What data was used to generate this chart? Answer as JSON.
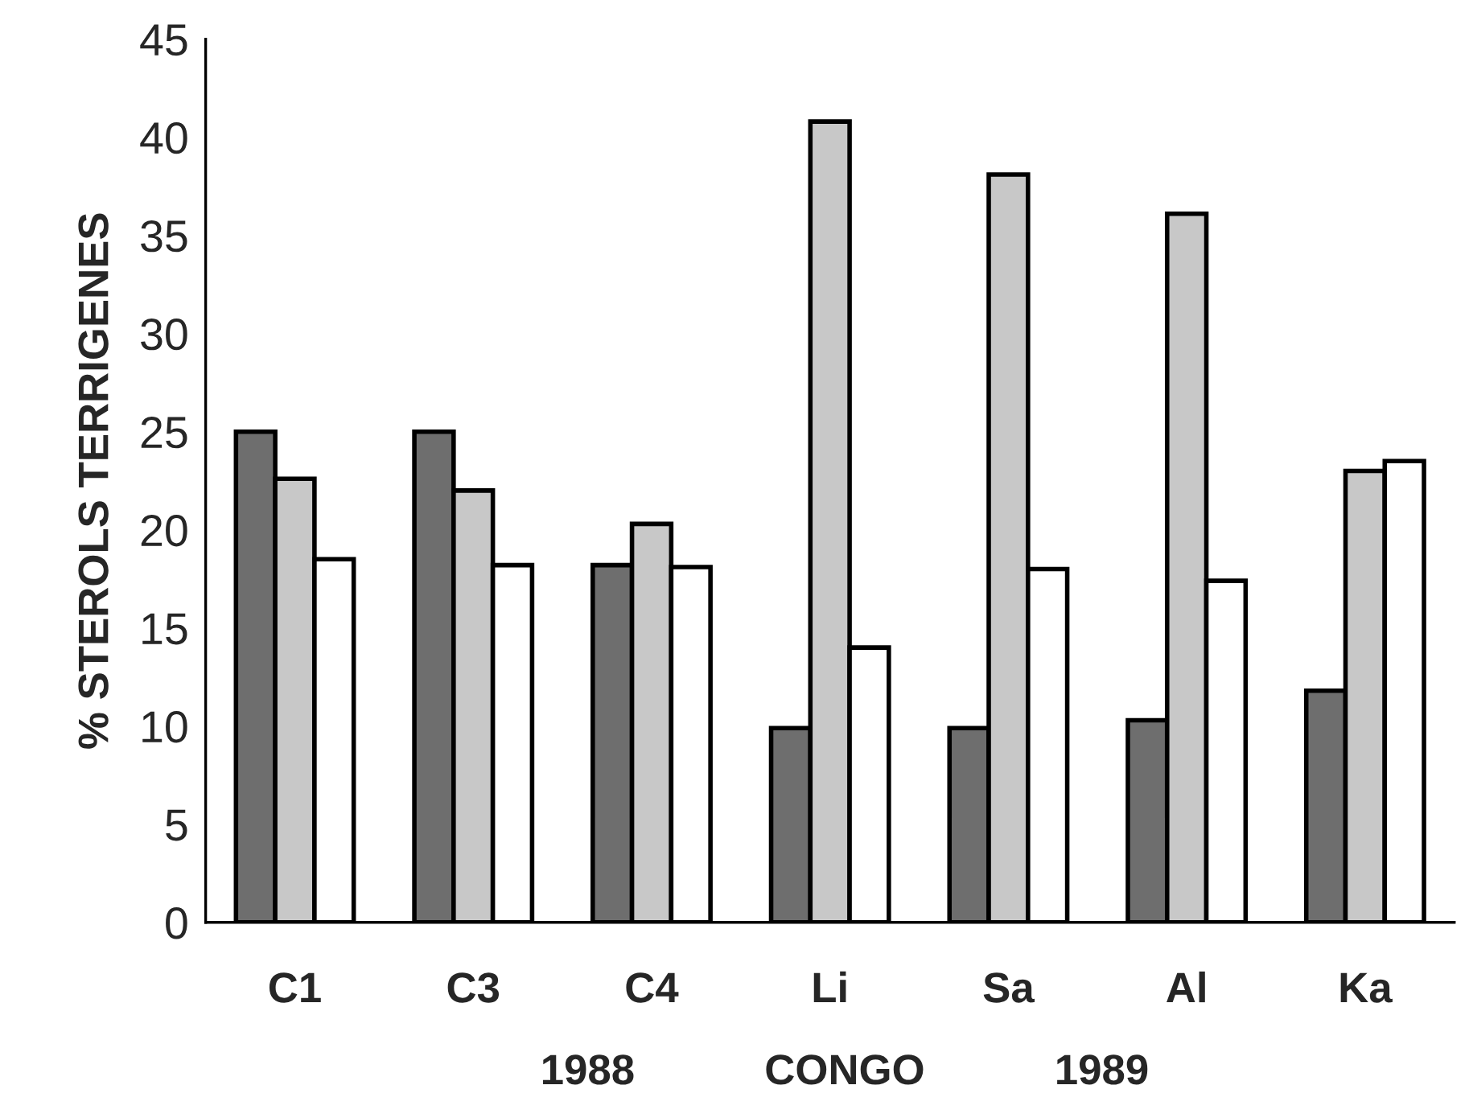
{
  "chart_data": {
    "type": "bar",
    "ylabel": "% STEROLS TERRIGENES",
    "categories": [
      "C1",
      "C3",
      "C4",
      "Li",
      "Sa",
      "Al",
      "Ka"
    ],
    "series": [
      {
        "color": "#6e6e6e",
        "values": [
          25.0,
          25.0,
          18.2,
          9.9,
          9.9,
          10.3,
          11.8
        ]
      },
      {
        "color": "#c8c8c8",
        "values": [
          22.6,
          22.0,
          20.3,
          40.8,
          38.1,
          36.1,
          23.0
        ]
      },
      {
        "color": "#ffffff",
        "values": [
          18.5,
          18.2,
          18.1,
          14.0,
          18.0,
          17.4,
          23.5
        ]
      }
    ],
    "ylim": [
      0,
      45
    ],
    "yticks": [
      0,
      5,
      10,
      15,
      20,
      25,
      30,
      35,
      40,
      45
    ],
    "annotations": [
      "1988",
      "CONGO",
      "1989"
    ]
  }
}
